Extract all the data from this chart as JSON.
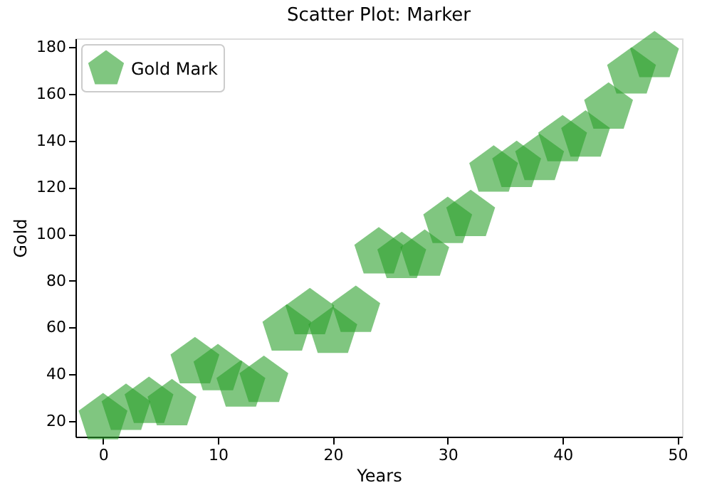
{
  "chart_data": {
    "type": "scatter",
    "title": "Scatter Plot: Marker",
    "xlabel": "Years",
    "ylabel": "Gold",
    "x": [
      0,
      2,
      4,
      6,
      8,
      10,
      12,
      14,
      16,
      18,
      20,
      22,
      24,
      26,
      28,
      30,
      32,
      34,
      36,
      38,
      40,
      42,
      44,
      46,
      48
    ],
    "series": [
      {
        "name": "Gold Mark",
        "color": "#2ca02c",
        "values": [
          21,
          25,
          28,
          27,
          45,
          42,
          35,
          37,
          59,
          66,
          58,
          67,
          92,
          90,
          91,
          105,
          108,
          127,
          129,
          132,
          140,
          142,
          154,
          169,
          176
        ]
      }
    ],
    "xlim": [
      -2.4,
      50.4
    ],
    "xticks": [
      0,
      10,
      20,
      30,
      40,
      50
    ],
    "ylim": [
      13.25,
      183.75
    ],
    "yticks": [
      20,
      40,
      60,
      80,
      100,
      120,
      140,
      160,
      180
    ],
    "legend": "top left",
    "grid": false
  }
}
